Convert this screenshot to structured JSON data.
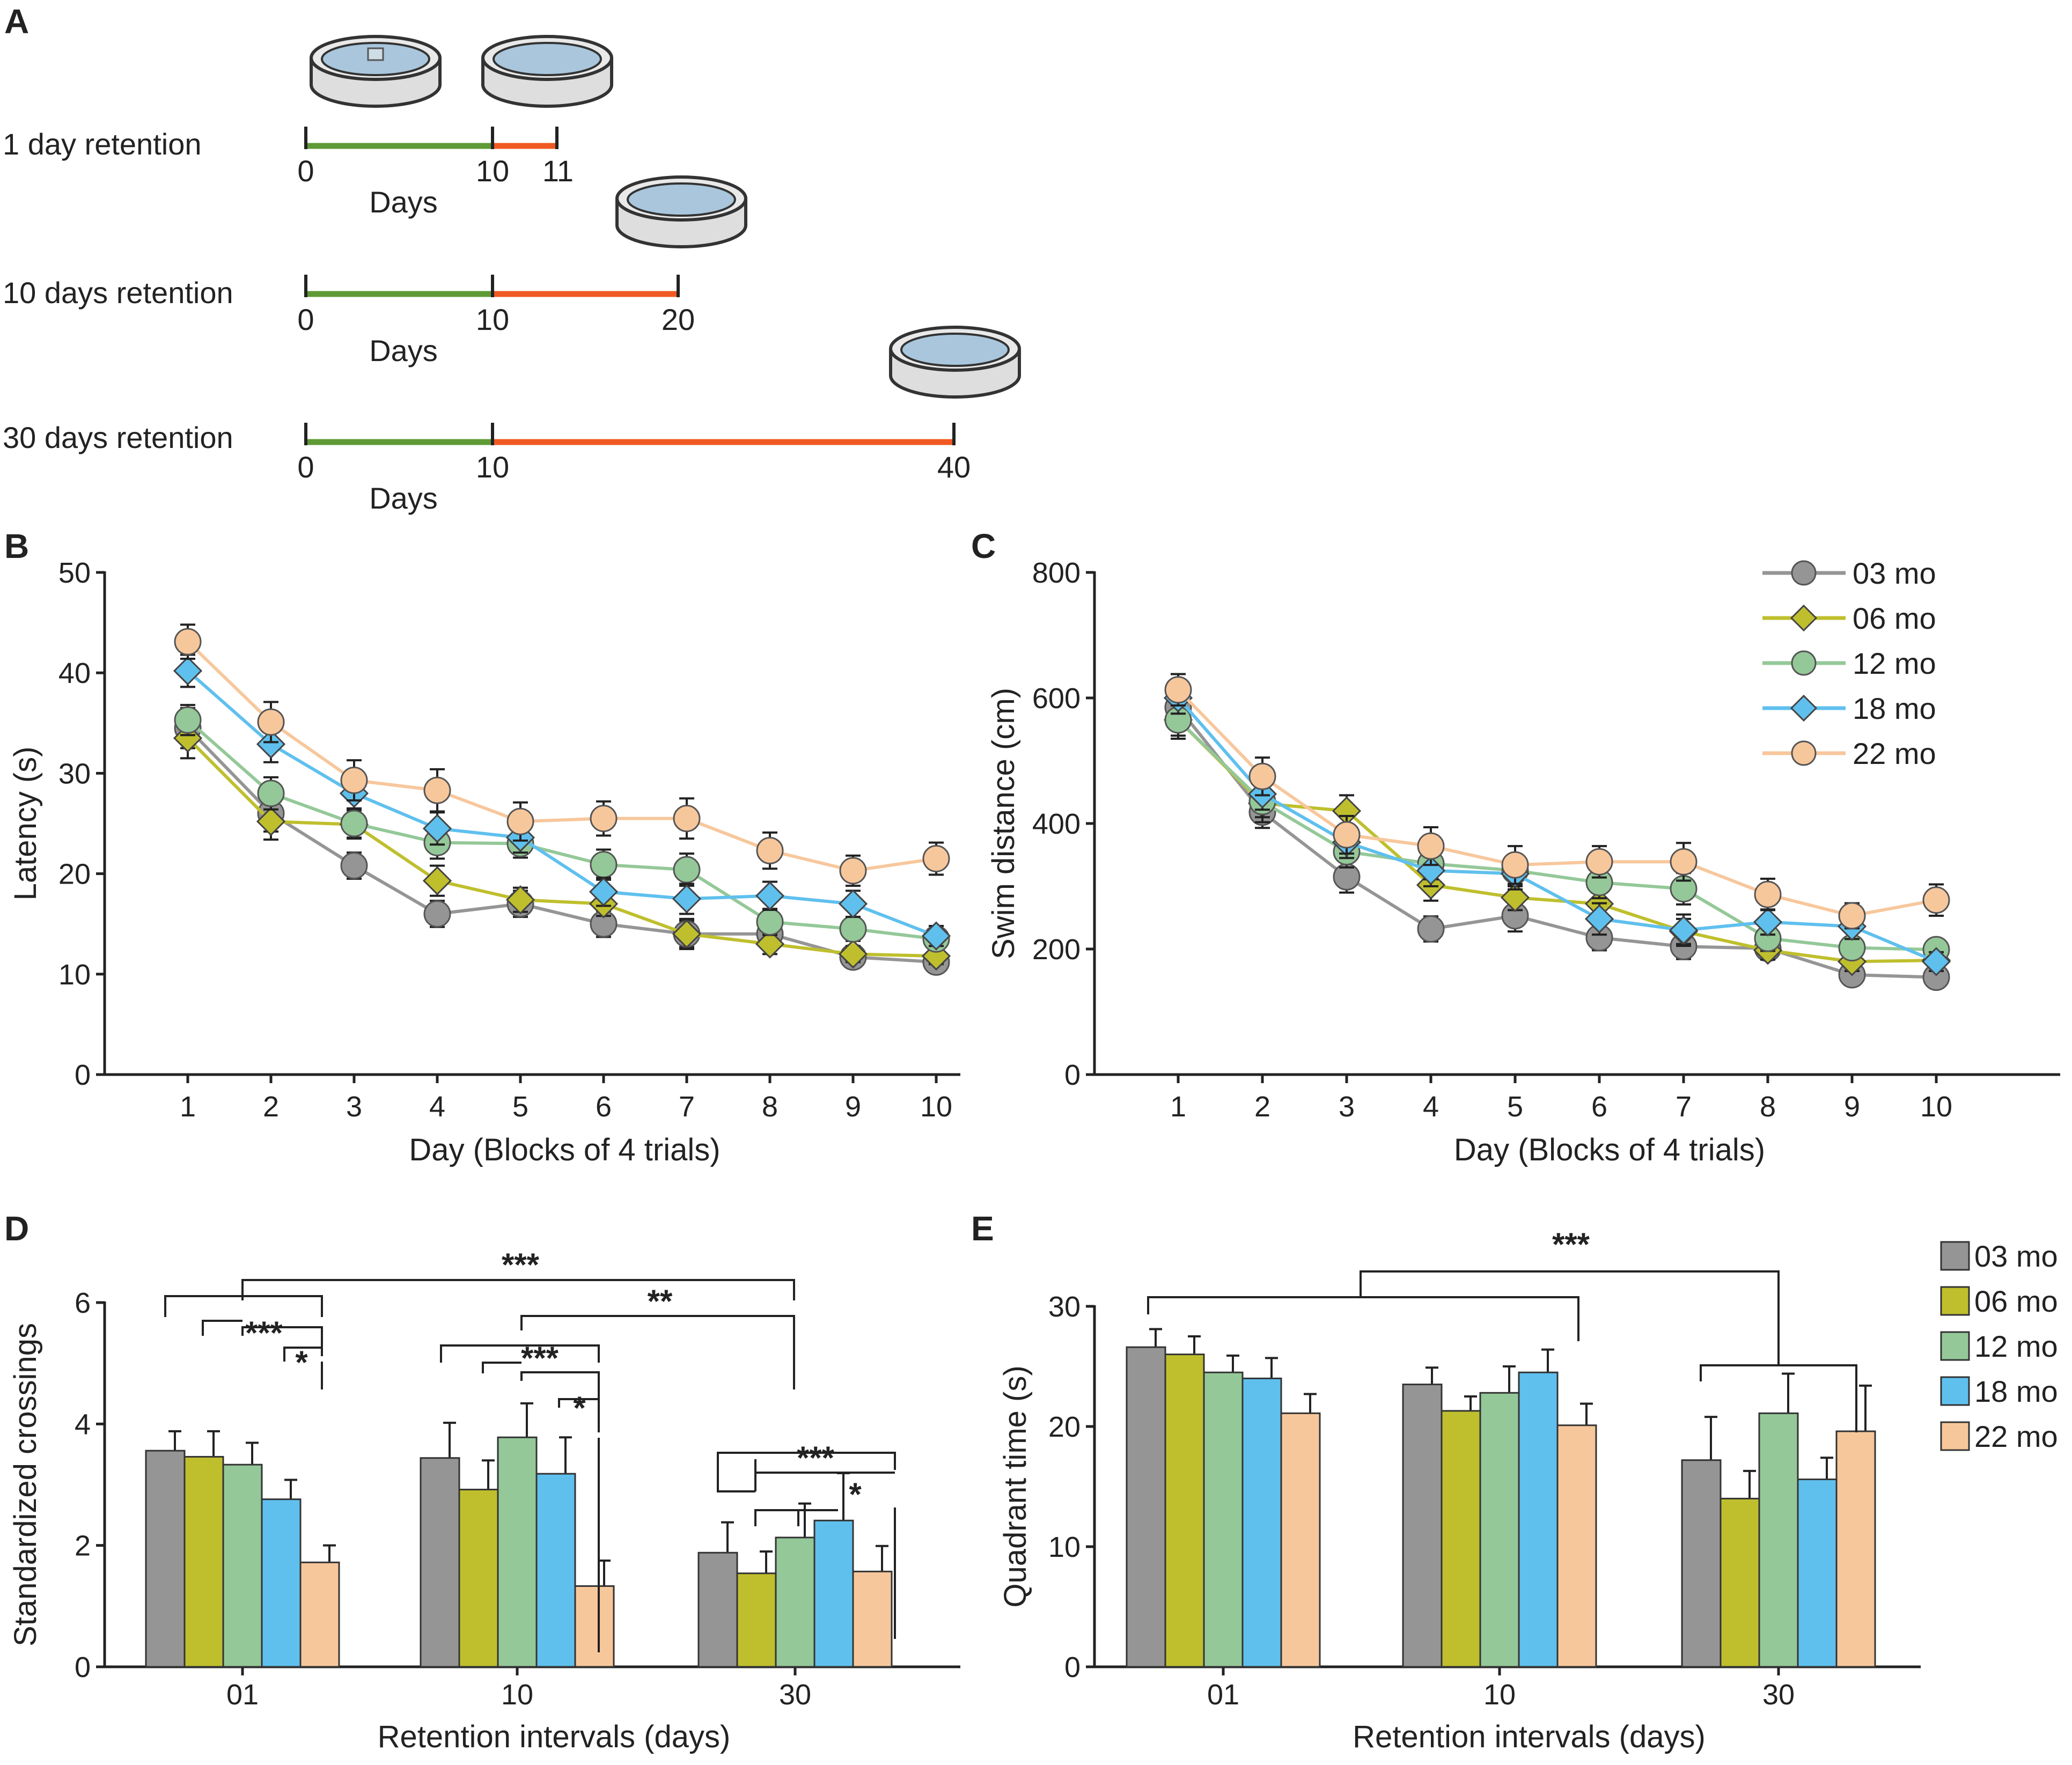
{
  "colors": {
    "03 mo": "#959595",
    "06 mo": "#bfbf2e",
    "12 mo": "#94c898",
    "18 mo": "#5fc0ee",
    "22 mo": "#f7c79c",
    "training": "#5e9a35",
    "retention": "#f05a22"
  },
  "panels": {
    "A": {
      "letter": "A",
      "rows": [
        {
          "label": "1 day retention",
          "ticks": [
            "0",
            "10",
            "11"
          ],
          "days_label": "Days"
        },
        {
          "label": "10 days retention",
          "ticks": [
            "0",
            "10",
            "20"
          ],
          "days_label": "Days"
        },
        {
          "label": "30 days retention",
          "ticks": [
            "0",
            "10",
            "40"
          ],
          "days_label": "Days"
        }
      ]
    },
    "B": {
      "letter": "B"
    },
    "C": {
      "letter": "C"
    },
    "D": {
      "letter": "D",
      "significance": [
        "***",
        "**",
        "***",
        "*",
        "***",
        "*",
        "***",
        "*"
      ]
    },
    "E": {
      "letter": "E",
      "significance": [
        "***"
      ]
    }
  },
  "chart_data": [
    {
      "id": "B",
      "type": "line",
      "xlabel": "Day (Blocks of 4 trials)",
      "ylabel": "Latency (s)",
      "x": [
        1,
        2,
        3,
        4,
        5,
        6,
        7,
        8,
        9,
        10
      ],
      "xticks": [
        "1",
        "2",
        "3",
        "4",
        "5",
        "6",
        "7",
        "8",
        "9",
        "10"
      ],
      "ylim": [
        0,
        50
      ],
      "yticks": [
        "0",
        "10",
        "20",
        "30",
        "40",
        "50"
      ],
      "series": [
        {
          "name": "03 mo",
          "marker": "circle",
          "values": [
            34.5,
            26.0,
            20.8,
            16.0,
            17.0,
            15.0,
            14.0,
            14.0,
            11.7,
            11.2
          ],
          "err": [
            2.0,
            1.8,
            1.3,
            1.3,
            1.3,
            1.3,
            1.3,
            1.3,
            0.8,
            0.8
          ]
        },
        {
          "name": "06 mo",
          "marker": "diamond",
          "values": [
            33.5,
            25.2,
            24.9,
            19.3,
            17.4,
            17.0,
            14.0,
            13.0,
            12.0,
            11.8
          ],
          "err": [
            2.0,
            1.8,
            1.4,
            1.5,
            1.2,
            1.2,
            1.5,
            1.0,
            0.8,
            0.8
          ]
        },
        {
          "name": "12 mo",
          "marker": "circle",
          "values": [
            35.3,
            28.0,
            25.0,
            23.1,
            23.0,
            20.9,
            20.4,
            15.2,
            14.5,
            13.5
          ],
          "err": [
            1.5,
            1.6,
            1.4,
            1.6,
            1.4,
            1.5,
            1.6,
            1.3,
            1.2,
            1.0
          ]
        },
        {
          "name": "18 mo",
          "marker": "diamond",
          "values": [
            40.2,
            32.9,
            28.0,
            24.5,
            23.6,
            18.2,
            17.5,
            17.8,
            17.0,
            13.8
          ],
          "err": [
            1.6,
            1.8,
            1.5,
            1.6,
            1.5,
            1.4,
            1.5,
            1.4,
            1.3,
            1.0
          ]
        },
        {
          "name": "22 mo",
          "marker": "circle",
          "values": [
            43.1,
            35.1,
            29.3,
            28.3,
            25.2,
            25.5,
            25.5,
            22.3,
            20.3,
            21.5
          ],
          "err": [
            1.7,
            2.0,
            2.0,
            2.1,
            1.9,
            1.7,
            2.0,
            1.8,
            1.5,
            1.6
          ]
        }
      ]
    },
    {
      "id": "C",
      "type": "line",
      "xlabel": "Day (Blocks of 4 trials)",
      "ylabel": "Swim distance (cm)",
      "x": [
        1,
        2,
        3,
        4,
        5,
        6,
        7,
        8,
        9,
        10
      ],
      "xticks": [
        "1",
        "2",
        "3",
        "4",
        "5",
        "6",
        "7",
        "8",
        "9",
        "10"
      ],
      "ylim": [
        0,
        800
      ],
      "yticks": [
        "0",
        "200",
        "400",
        "600",
        "800"
      ],
      "legend": {
        "entries": [
          "03 mo",
          "06 mo",
          "12 mo",
          "18 mo",
          "22 mo"
        ],
        "placement": "top-right"
      },
      "series": [
        {
          "name": "03 mo",
          "marker": "circle",
          "values": [
            585,
            418,
            315,
            232,
            253,
            218,
            204,
            201,
            159,
            155
          ],
          "err": [
            25,
            25,
            25,
            20,
            25,
            20,
            20,
            15,
            15,
            12
          ]
        },
        {
          "name": "06 mo",
          "marker": "diamond",
          "values": [
            565,
            432,
            420,
            302,
            282,
            272,
            228,
            198,
            180,
            182
          ],
          "err": [
            30,
            30,
            25,
            25,
            20,
            20,
            20,
            15,
            15,
            12
          ]
        },
        {
          "name": "12 mo",
          "marker": "circle",
          "values": [
            565,
            435,
            355,
            336,
            325,
            306,
            296,
            217,
            202,
            199
          ],
          "err": [
            25,
            25,
            25,
            25,
            25,
            25,
            25,
            20,
            15,
            15
          ]
        },
        {
          "name": "18 mo",
          "marker": "diamond",
          "values": [
            600,
            447,
            370,
            325,
            320,
            248,
            230,
            243,
            236,
            180
          ],
          "err": [
            25,
            25,
            25,
            25,
            25,
            25,
            25,
            20,
            20,
            15
          ]
        },
        {
          "name": "22 mo",
          "marker": "circle",
          "values": [
            613,
            475,
            382,
            364,
            334,
            339,
            339,
            287,
            253,
            278
          ],
          "err": [
            25,
            30,
            30,
            30,
            30,
            25,
            30,
            25,
            20,
            25
          ]
        }
      ]
    },
    {
      "id": "D",
      "type": "bar",
      "xlabel": "Retention intervals (days)",
      "ylabel": "Standardized crossings",
      "categories": [
        "01",
        "10",
        "30"
      ],
      "ylim": [
        0,
        6
      ],
      "yticks": [
        "0",
        "2",
        "4",
        "6"
      ],
      "series": [
        {
          "name": "03 mo",
          "values": [
            3.56,
            3.44,
            1.88
          ],
          "err": [
            0.32,
            0.58,
            0.5
          ]
        },
        {
          "name": "06 mo",
          "values": [
            3.46,
            2.92,
            1.54
          ],
          "err": [
            0.42,
            0.48,
            0.36
          ]
        },
        {
          "name": "12 mo",
          "values": [
            3.33,
            3.78,
            2.13
          ],
          "err": [
            0.36,
            0.56,
            0.56
          ]
        },
        {
          "name": "18 mo",
          "values": [
            2.76,
            3.18,
            2.41
          ],
          "err": [
            0.32,
            0.6,
            0.78
          ]
        },
        {
          "name": "22 mo",
          "values": [
            1.72,
            1.33,
            1.57
          ],
          "err": [
            0.28,
            0.42,
            0.42
          ]
        }
      ]
    },
    {
      "id": "E",
      "type": "bar",
      "xlabel": "Retention intervals (days)",
      "ylabel": "Quadrant time (s)",
      "categories": [
        "01",
        "10",
        "30"
      ],
      "ylim": [
        0,
        30
      ],
      "yticks": [
        "0",
        "10",
        "20",
        "30"
      ],
      "legend": {
        "entries": [
          "03 mo",
          "06 mo",
          "12 mo",
          "18 mo",
          "22 mo"
        ],
        "placement": "right"
      },
      "series": [
        {
          "name": "03 mo",
          "values": [
            26.6,
            23.5,
            17.2
          ],
          "err": [
            1.5,
            1.4,
            3.6
          ]
        },
        {
          "name": "06 mo",
          "values": [
            26.0,
            21.3,
            14.0
          ],
          "err": [
            1.5,
            1.2,
            2.3
          ]
        },
        {
          "name": "12 mo",
          "values": [
            24.5,
            22.8,
            21.1
          ],
          "err": [
            1.4,
            2.2,
            3.3
          ]
        },
        {
          "name": "18 mo",
          "values": [
            24.0,
            24.5,
            15.6
          ],
          "err": [
            1.7,
            1.9,
            1.8
          ]
        },
        {
          "name": "22 mo",
          "values": [
            21.1,
            20.1,
            19.6
          ],
          "err": [
            1.6,
            1.8,
            3.8
          ]
        }
      ]
    }
  ]
}
